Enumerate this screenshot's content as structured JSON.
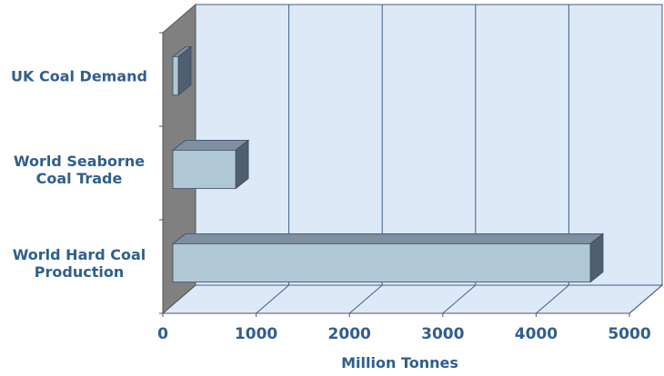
{
  "chart_data": {
    "type": "bar",
    "orientation": "horizontal",
    "style": "3d",
    "categories": [
      [
        "UK Coal Demand"
      ],
      [
        "World Seaborne",
        "Coal Trade"
      ],
      [
        "World Hard Coal",
        "Production"
      ]
    ],
    "values": [
      60,
      800,
      4600
    ],
    "xlim": [
      0,
      5000
    ],
    "xticks": [
      0,
      1000,
      2000,
      3000,
      4000,
      5000
    ],
    "xlabel": "Million Tonnes",
    "ylabel": "",
    "title": "",
    "grid": true,
    "legend": "none",
    "colors": {
      "wall": "#dde9f7",
      "floor": "#dde9f7",
      "side_wall": "#808080",
      "bar_front": "#b0c8d6",
      "bar_top": "#7f8fa2",
      "bar_side": "#4f5f6f",
      "grid": "#3e5f87",
      "text": "#2f5f8f"
    }
  }
}
